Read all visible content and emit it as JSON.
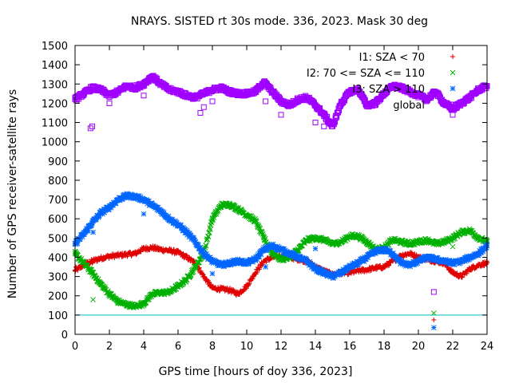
{
  "chart_data": {
    "type": "scatter",
    "title": "NRAYS. SISTED rt 30s mode. 336, 2023. Mask 30 deg",
    "xlabel": "GPS time [hours of doy 336, 2023]",
    "ylabel": "Number of GPS receiver-satellite rays",
    "xlim": [
      0,
      24
    ],
    "ylim": [
      0,
      1500
    ],
    "xticks": [
      "0",
      "2",
      "4",
      "6",
      "8",
      "10",
      "12",
      "14",
      "16",
      "18",
      "20",
      "22",
      "24"
    ],
    "yticks": [
      "0",
      "100",
      "200",
      "300",
      "400",
      "500",
      "600",
      "700",
      "800",
      "900",
      "1000",
      "1100",
      "1200",
      "1300",
      "1400",
      "1500"
    ],
    "reference_line": {
      "y": 100,
      "color": "#00c0c0"
    },
    "legend_position": "top-right",
    "series": [
      {
        "name": "I1: SZA < 70",
        "marker": "+",
        "color": "#e00000",
        "x": [
          0,
          0.5,
          1,
          1.5,
          2,
          2.5,
          3,
          3.5,
          4,
          4.5,
          5,
          5.5,
          6,
          6.5,
          7,
          7.5,
          8,
          8.5,
          9,
          9.5,
          10,
          10.5,
          11,
          11.5,
          12,
          12.5,
          13,
          13.5,
          14,
          14.5,
          15,
          15.5,
          16,
          16.5,
          17,
          17.5,
          18,
          18.5,
          19,
          19.5,
          20,
          20.5,
          21,
          21.5,
          22,
          22.5,
          23,
          23.5,
          24
        ],
        "values": [
          330,
          360,
          380,
          395,
          405,
          410,
          415,
          420,
          445,
          450,
          440,
          435,
          425,
          400,
          370,
          300,
          240,
          235,
          230,
          210,
          250,
          320,
          380,
          400,
          405,
          400,
          390,
          380,
          350,
          330,
          310,
          320,
          320,
          330,
          335,
          345,
          350,
          380,
          410,
          420,
          400,
          390,
          380,
          370,
          320,
          300,
          340,
          360,
          370
        ],
        "outliers_x": [
          0.05,
          1.0,
          20.9
        ],
        "outliers_y": [
          350,
          370,
          75
        ]
      },
      {
        "name": "I2: 70 <= SZA <= 110",
        "marker": "x",
        "color": "#00b000",
        "x": [
          0,
          0.5,
          1,
          1.5,
          2,
          2.5,
          3,
          3.5,
          4,
          4.5,
          5,
          5.5,
          6,
          6.5,
          7,
          7.5,
          8,
          8.5,
          9,
          9.5,
          10,
          10.5,
          11,
          11.5,
          12,
          12.5,
          13,
          13.5,
          14,
          14.5,
          15,
          15.5,
          16,
          16.5,
          17,
          17.5,
          18,
          18.5,
          19,
          19.5,
          20,
          20.5,
          21,
          21.5,
          22,
          22.5,
          23,
          23.5,
          24
        ],
        "values": [
          420,
          370,
          320,
          260,
          210,
          170,
          155,
          145,
          160,
          210,
          215,
          220,
          250,
          285,
          350,
          420,
          600,
          670,
          675,
          650,
          620,
          590,
          500,
          420,
          390,
          400,
          440,
          490,
          500,
          490,
          470,
          480,
          510,
          510,
          480,
          440,
          450,
          490,
          480,
          470,
          480,
          490,
          470,
          480,
          500,
          530,
          540,
          500,
          480
        ],
        "outliers_x": [
          1.05,
          20.9,
          22.0
        ],
        "outliers_y": [
          180,
          110,
          455
        ]
      },
      {
        "name": "I3: SZA > 110",
        "marker": "*",
        "color": "#0066ff",
        "x": [
          0,
          0.5,
          1,
          1.5,
          2,
          2.5,
          3,
          3.5,
          4,
          4.5,
          5,
          5.5,
          6,
          6.5,
          7,
          7.5,
          8,
          8.5,
          9,
          9.5,
          10,
          10.5,
          11,
          11.5,
          12,
          12.5,
          13,
          13.5,
          14,
          14.5,
          15,
          15.5,
          16,
          16.5,
          17,
          17.5,
          18,
          18.5,
          19,
          19.5,
          20,
          20.5,
          21,
          21.5,
          22,
          22.5,
          23,
          23.5,
          24
        ],
        "values": [
          470,
          520,
          580,
          630,
          660,
          700,
          720,
          715,
          700,
          670,
          640,
          600,
          570,
          530,
          480,
          420,
          380,
          360,
          370,
          380,
          370,
          390,
          440,
          460,
          440,
          420,
          400,
          380,
          340,
          320,
          300,
          320,
          350,
          370,
          400,
          430,
          440,
          420,
          370,
          360,
          380,
          400,
          390,
          380,
          370,
          380,
          400,
          420,
          460
        ],
        "outliers_x": [
          1.05,
          4.0,
          8.0,
          11.1,
          14.0,
          20.9
        ],
        "outliers_y": [
          530,
          625,
          315,
          350,
          445,
          35
        ]
      },
      {
        "name": "global",
        "marker": "square",
        "color": "#a000ff",
        "x": [
          0,
          0.5,
          1,
          1.5,
          2,
          2.5,
          3,
          3.5,
          4,
          4.5,
          5,
          5.5,
          6,
          6.5,
          7,
          7.5,
          8,
          8.5,
          9,
          9.5,
          10,
          10.5,
          11,
          11.5,
          12,
          12.5,
          13,
          13.5,
          14,
          14.5,
          15,
          15.5,
          16,
          16.5,
          17,
          17.5,
          18,
          18.5,
          19,
          19.5,
          20,
          20.5,
          21,
          21.5,
          22,
          22.5,
          23,
          23.5,
          24
        ],
        "values": [
          1220,
          1250,
          1280,
          1270,
          1240,
          1260,
          1290,
          1280,
          1300,
          1340,
          1300,
          1270,
          1260,
          1240,
          1230,
          1250,
          1270,
          1280,
          1260,
          1250,
          1250,
          1260,
          1310,
          1260,
          1210,
          1190,
          1220,
          1230,
          1190,
          1140,
          1080,
          1200,
          1260,
          1270,
          1190,
          1200,
          1250,
          1290,
          1280,
          1260,
          1240,
          1220,
          1260,
          1200,
          1170,
          1200,
          1230,
          1270,
          1290
        ],
        "outliers_x": [
          0.9,
          1.0,
          2.0,
          4.0,
          7.3,
          7.5,
          8.0,
          11.1,
          12.0,
          14.0,
          14.5,
          20.9,
          22.0
        ],
        "outliers_y": [
          1070,
          1080,
          1200,
          1240,
          1150,
          1180,
          1210,
          1210,
          1140,
          1100,
          1080,
          220,
          1140
        ]
      }
    ]
  }
}
